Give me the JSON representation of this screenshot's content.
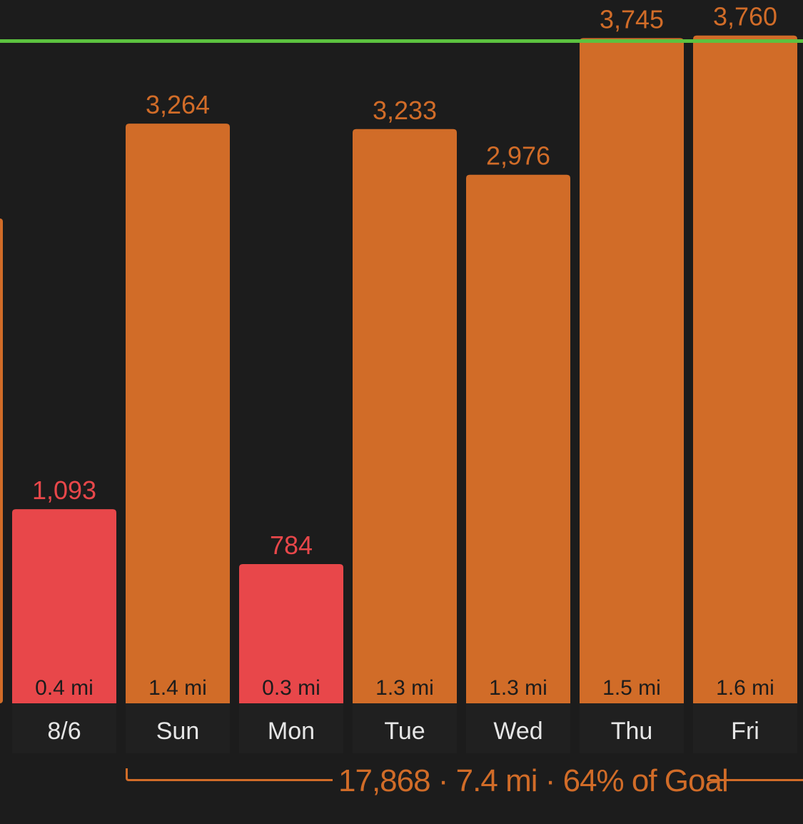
{
  "colors": {
    "background": "#1c1c1c",
    "goal_line": "#5cc23f",
    "above_goal": "#d16c28",
    "below_goal": "#e8474a",
    "mi_label": "#1c1c1c",
    "day_label": "#e6e6e6",
    "day_panel": "#202020"
  },
  "chart_data": {
    "type": "bar",
    "categories": [
      "8/6",
      "Sun",
      "Mon",
      "Tue",
      "Wed",
      "Thu",
      "Fri"
    ],
    "values": [
      1093,
      3264,
      784,
      3233,
      2976,
      3745,
      3760
    ],
    "value_labels": [
      "1,093",
      "3,264",
      "784",
      "3,233",
      "2,976",
      "3,745",
      "3,760"
    ],
    "distance_labels": [
      "0.4 mi",
      "1.4 mi",
      "0.3 mi",
      "1.3 mi",
      "1.3 mi",
      "1.5 mi",
      "1.6 mi"
    ],
    "status": [
      "below",
      "above",
      "below",
      "above",
      "above",
      "above",
      "above"
    ],
    "partial_bar_left": {
      "status": "above"
    },
    "ylim": [
      0,
      4000
    ],
    "grid": false,
    "title": "",
    "xlabel": "",
    "ylabel": ""
  },
  "summary": {
    "text": "17,868 · 7.4 mi · 64% of Goal"
  }
}
